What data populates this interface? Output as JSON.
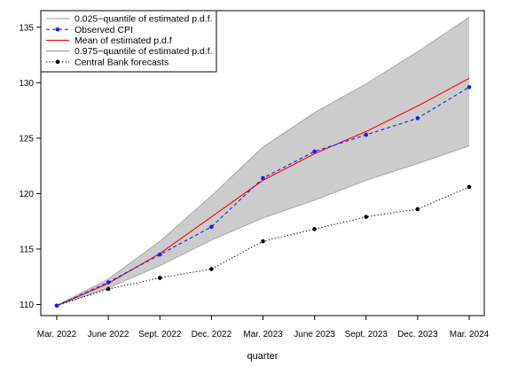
{
  "chart_data": {
    "type": "line",
    "categories": [
      "Mar. 2022",
      "June 2022",
      "Sept. 2022",
      "Dec. 2022",
      "Mar. 2023",
      "June 2023",
      "Sept. 2023",
      "Dec. 2023",
      "Mar. 2024"
    ],
    "xlabel": "quarter",
    "ylabel": "",
    "ylim": [
      109,
      136.5
    ],
    "yticks": [
      110,
      115,
      120,
      125,
      130,
      135
    ],
    "grid": false,
    "legend_position": "top-left",
    "series": [
      {
        "name": "0.025−quantile of estimated p.d.f.",
        "values": [
          109.9,
          111.5,
          113.5,
          115.8,
          117.8,
          119.4,
          121.2,
          122.7,
          124.3
        ],
        "color": "#9a9a9a",
        "style": "solid"
      },
      {
        "name": "Observed CPI",
        "values": [
          109.9,
          112.0,
          114.5,
          117.0,
          121.4,
          123.8,
          125.3,
          126.8,
          129.6
        ],
        "color": "#1a1aff",
        "style": "dashed",
        "marker": "circle"
      },
      {
        "name": "Mean of estimated p.d.f",
        "values": [
          109.9,
          111.9,
          114.6,
          117.9,
          121.2,
          123.6,
          125.6,
          127.9,
          130.4
        ],
        "color": "#ff0000",
        "style": "solid"
      },
      {
        "name": "0.975−quantile of estimated p.d.f.",
        "values": [
          109.9,
          112.3,
          115.7,
          119.8,
          124.2,
          127.3,
          129.9,
          132.8,
          135.9
        ],
        "color": "#9a9a9a",
        "style": "solid"
      },
      {
        "name": "Central Bank forecasts",
        "values": [
          109.9,
          111.4,
          112.4,
          113.2,
          115.7,
          116.8,
          117.9,
          118.6,
          120.6
        ],
        "color": "#000000",
        "style": "dotted",
        "marker": "circle"
      }
    ],
    "band_color": "#cccccc"
  }
}
